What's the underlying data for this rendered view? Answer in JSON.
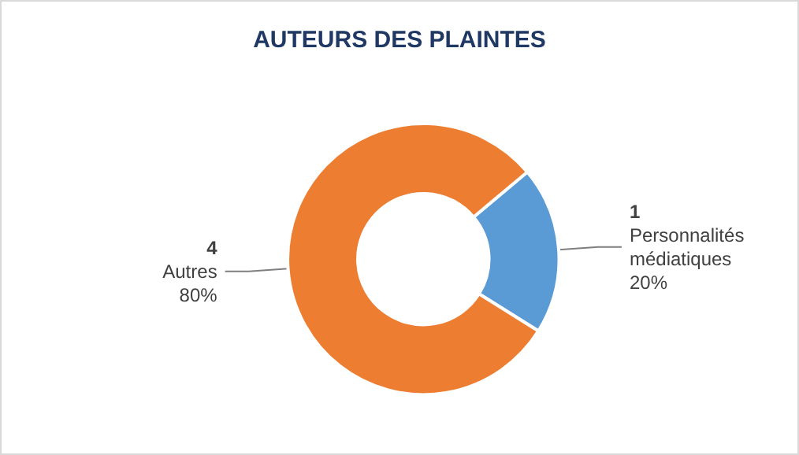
{
  "chart_data": {
    "type": "donut",
    "title": "AUTEURS DES PLAINTES",
    "categories": [
      "Personnalités médiatiques",
      "Autres"
    ],
    "values": [
      20,
      80
    ],
    "colors": [
      "#5b9bd5",
      "#ed7d31"
    ],
    "value_labels": [
      "20%",
      "80%"
    ],
    "annotations": [
      {
        "text": "1",
        "x": "Personnalités médiatiques"
      },
      {
        "text": "4",
        "x": "Autres"
      }
    ],
    "legend": false
  }
}
